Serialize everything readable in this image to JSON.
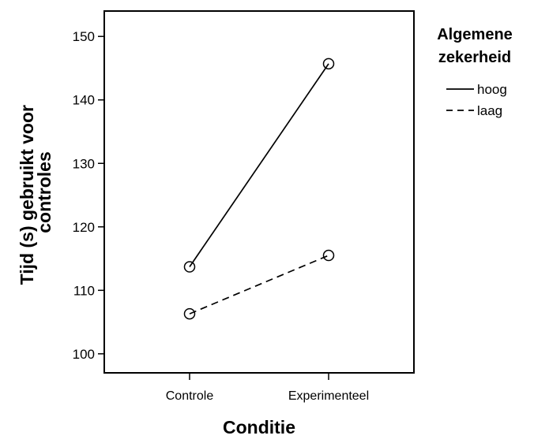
{
  "chart_data": {
    "type": "line",
    "categories": [
      "Controle",
      "Experimenteel"
    ],
    "xlabel": "Conditie",
    "ylabel_lines": [
      "Tijd (s) gebruikt voor",
      "controles"
    ],
    "ylim": [
      97,
      154
    ],
    "yticks": [
      100,
      110,
      120,
      130,
      140,
      150
    ],
    "grid": false,
    "legend": {
      "title_lines": [
        "Algemene",
        "zekerheid"
      ],
      "placement": "right"
    },
    "series": [
      {
        "name": "hoog",
        "values": [
          113.7,
          145.7
        ],
        "style": "solid"
      },
      {
        "name": "laag",
        "values": [
          106.3,
          115.5
        ],
        "style": "dashed"
      }
    ]
  }
}
